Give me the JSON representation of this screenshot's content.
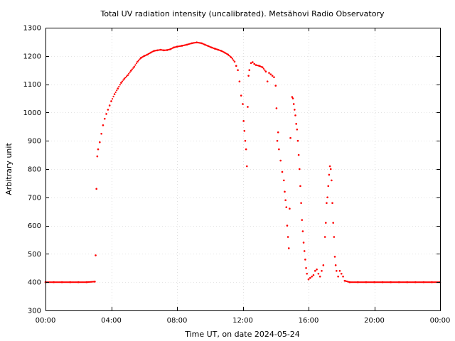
{
  "chart_data": {
    "type": "scatter",
    "title": "Total UV radiation intensity (uncalibrated). Metsähovi Radio Observatory",
    "xlabel": "Time UT, on date 2024-05-24",
    "ylabel": "Arbitrary unit",
    "x_unit": "hours",
    "xlim": [
      0,
      24
    ],
    "ylim": [
      300,
      1300
    ],
    "x_ticks": [
      0,
      4,
      8,
      12,
      16,
      20,
      24
    ],
    "x_tick_labels": [
      "00:00",
      "04:00",
      "08:00",
      "12:00",
      "16:00",
      "20:00",
      "00:00"
    ],
    "y_ticks": [
      300,
      400,
      500,
      600,
      700,
      800,
      900,
      1000,
      1100,
      1200,
      1300
    ],
    "y_tick_labels": [
      "300",
      "400",
      "500",
      "600",
      "700",
      "800",
      "900",
      "1000",
      "1100",
      "1200",
      "1300"
    ],
    "grid": true,
    "legend": false,
    "marker_color": "#ff0000",
    "series": [
      {
        "x": [
          0.0,
          0.5,
          1.0,
          1.5,
          2.0,
          2.5,
          3.0,
          3.05,
          3.1,
          3.15,
          3.2,
          3.3,
          3.4,
          3.5,
          3.6,
          3.7,
          3.8,
          3.9,
          4.0,
          4.2,
          4.4,
          4.6,
          4.8,
          5.0,
          5.2,
          5.4,
          5.6,
          5.8,
          6.0,
          6.2,
          6.4,
          6.6,
          6.8,
          7.0,
          7.2,
          7.4,
          7.6,
          7.8,
          8.0,
          8.3,
          8.6,
          8.9,
          9.2,
          9.5,
          9.7,
          9.9,
          10.1,
          10.3,
          10.5,
          10.7,
          10.9,
          11.1,
          11.3,
          11.5,
          11.6,
          11.7,
          11.8,
          11.9,
          12.0,
          12.05,
          12.1,
          12.15,
          12.2,
          12.25,
          12.3,
          12.35,
          12.4,
          12.5,
          12.6,
          12.7,
          12.8,
          13.0,
          13.2,
          13.4,
          13.5,
          13.6,
          13.7,
          13.8,
          13.9,
          14.0,
          14.05,
          14.1,
          14.15,
          14.2,
          14.3,
          14.4,
          14.5,
          14.55,
          14.6,
          14.65,
          14.7,
          14.75,
          14.8,
          14.85,
          14.9,
          15.0,
          15.05,
          15.1,
          15.15,
          15.2,
          15.25,
          15.3,
          15.35,
          15.4,
          15.45,
          15.5,
          15.55,
          15.6,
          15.65,
          15.7,
          15.75,
          15.8,
          15.85,
          15.9,
          16.0,
          16.1,
          16.2,
          16.3,
          16.4,
          16.5,
          16.6,
          16.7,
          16.8,
          16.9,
          17.0,
          17.05,
          17.1,
          17.15,
          17.2,
          17.25,
          17.3,
          17.35,
          17.4,
          17.45,
          17.5,
          17.55,
          17.6,
          17.65,
          17.7,
          17.8,
          17.9,
          18.0,
          18.1,
          18.2,
          18.5,
          19.0,
          19.5,
          20.0,
          20.5,
          21.0,
          21.5,
          22.0,
          22.5,
          23.0,
          23.5,
          24.0
        ],
        "y": [
          400,
          400,
          400,
          400,
          400,
          400,
          402,
          495,
          730,
          845,
          870,
          895,
          925,
          955,
          978,
          995,
          1010,
          1025,
          1040,
          1065,
          1085,
          1105,
          1120,
          1132,
          1148,
          1162,
          1180,
          1193,
          1200,
          1205,
          1212,
          1218,
          1220,
          1222,
          1220,
          1221,
          1224,
          1230,
          1233,
          1236,
          1240,
          1245,
          1248,
          1245,
          1240,
          1235,
          1230,
          1226,
          1222,
          1218,
          1212,
          1205,
          1195,
          1180,
          1165,
          1150,
          1110,
          1060,
          1030,
          970,
          935,
          900,
          870,
          810,
          1020,
          1130,
          1150,
          1175,
          1178,
          1172,
          1168,
          1165,
          1160,
          1145,
          1110,
          1140,
          1135,
          1130,
          1125,
          1095,
          1015,
          900,
          930,
          870,
          830,
          790,
          760,
          720,
          690,
          665,
          600,
          560,
          520,
          660,
          910,
          1055,
          1050,
          1030,
          1010,
          990,
          960,
          940,
          900,
          850,
          800,
          740,
          680,
          620,
          580,
          540,
          510,
          480,
          450,
          430,
          410,
          415,
          420,
          425,
          440,
          445,
          430,
          420,
          440,
          460,
          560,
          610,
          680,
          700,
          740,
          780,
          810,
          800,
          760,
          680,
          610,
          560,
          490,
          460,
          440,
          420,
          440,
          430,
          420,
          405,
          400,
          400,
          400,
          400,
          400,
          400,
          400,
          400,
          400,
          400,
          400,
          400
        ]
      }
    ]
  }
}
